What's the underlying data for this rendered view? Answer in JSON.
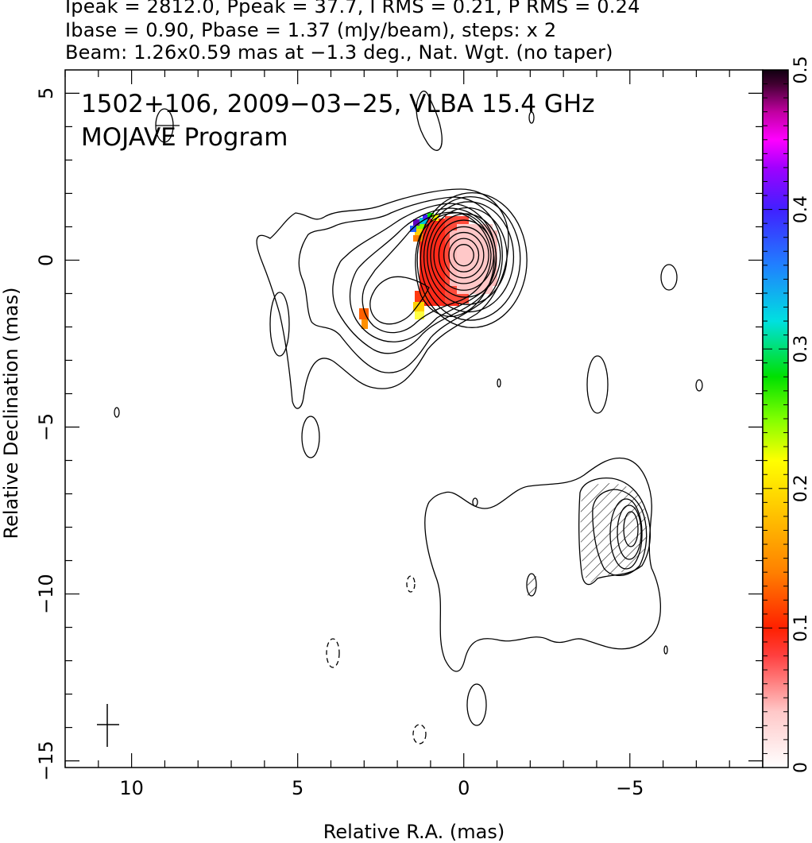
{
  "header": {
    "line1": "Ipeak = 2812.0, Ppeak = 37.7, I RMS = 0.21, P RMS = 0.24",
    "line2": "Ibase = 0.90, Pbase = 1.37 (mJy/beam), steps: x 2",
    "line3": "Beam: 1.26x0.59 mas at −1.3 deg., Nat. Wgt. (no taper)"
  },
  "plot_labels": {
    "line1": "1502+106, 2009−03−25, VLBA 15.4 GHz",
    "line2": "MOJAVE Program"
  },
  "chart_data": {
    "type": "heatmap",
    "xlabel": "Relative R.A. (mas)",
    "ylabel": "Relative Declination (mas)",
    "xlim": [
      12,
      -9
    ],
    "ylim": [
      -15.2,
      5.7
    ],
    "xticks": [
      10,
      5,
      0,
      -5
    ],
    "xtick_labels": [
      "10",
      "5",
      "0",
      "−5"
    ],
    "yticks": [
      5,
      0,
      -5,
      -10,
      -15
    ],
    "ytick_labels": [
      "5",
      "0",
      "−5",
      "−10",
      "−15"
    ],
    "colorbar": {
      "min": 0,
      "max": 0.5,
      "ticks": [
        0,
        0.1,
        0.2,
        0.3,
        0.4,
        0.5
      ],
      "tick_labels": [
        "0",
        "0.1",
        "0.2",
        "0.3",
        "0.4",
        "0.5"
      ]
    },
    "core_contour_levels": [
      {
        "rx": 1.65,
        "ry": 2.02,
        "cx": -0.25,
        "cy": 0.0
      },
      {
        "rx": 1.5,
        "ry": 1.85,
        "cx": -0.2,
        "cy": 0.05
      },
      {
        "rx": 1.35,
        "ry": 1.65,
        "cx": -0.15,
        "cy": 0.1
      },
      {
        "rx": 1.2,
        "ry": 1.45,
        "cx": -0.1,
        "cy": 0.12
      },
      {
        "rx": 1.05,
        "ry": 1.25,
        "cx": -0.05,
        "cy": 0.14
      },
      {
        "rx": 0.9,
        "ry": 1.05,
        "cx": 0.0,
        "cy": 0.15
      },
      {
        "rx": 0.75,
        "ry": 0.85,
        "cx": 0.0,
        "cy": 0.15
      },
      {
        "rx": 0.6,
        "ry": 0.68,
        "cx": 0.0,
        "cy": 0.15
      },
      {
        "rx": 0.45,
        "ry": 0.5,
        "cx": 0.0,
        "cy": 0.15
      },
      {
        "rx": 0.3,
        "ry": 0.32,
        "cx": 0.0,
        "cy": 0.15
      }
    ]
  }
}
